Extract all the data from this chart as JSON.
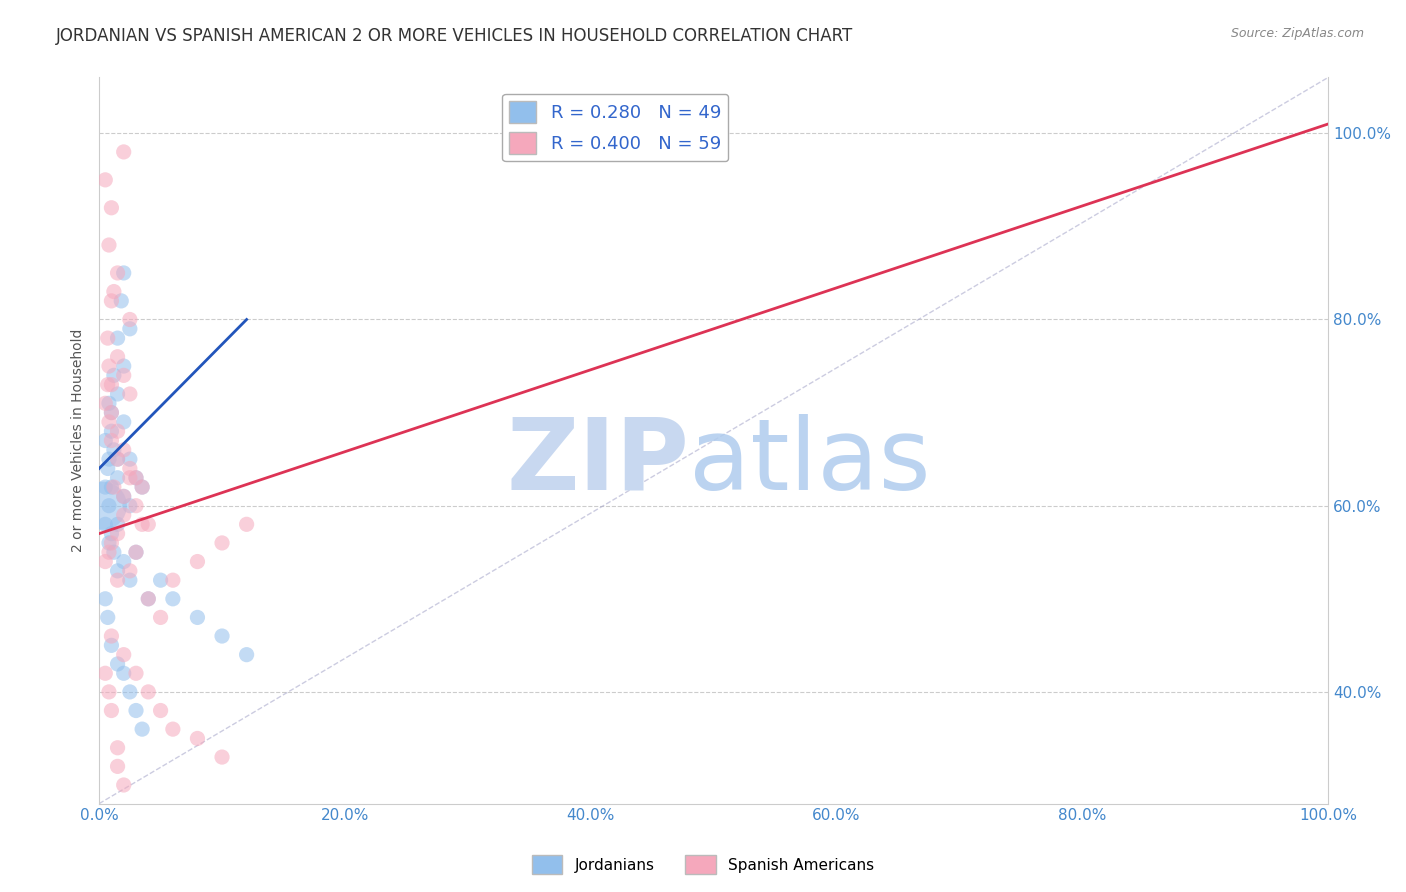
{
  "title": "JORDANIAN VS SPANISH AMERICAN 2 OR MORE VEHICLES IN HOUSEHOLD CORRELATION CHART",
  "source": "Source: ZipAtlas.com",
  "ylabel": "2 or more Vehicles in Household",
  "xlim": [
    0,
    100
  ],
  "ylim": [
    28,
    106
  ],
  "yticks": [
    40,
    60,
    80,
    100
  ],
  "xticks": [
    0,
    20,
    40,
    60,
    80,
    100
  ],
  "ytick_labels": [
    "40.0%",
    "60.0%",
    "80.0%",
    "100.0%"
  ],
  "xtick_labels": [
    "0.0%",
    "20.0%",
    "40.0%",
    "60.0%",
    "80.0%",
    "100.0%"
  ],
  "legend_blue_label": "R = 0.280   N = 49",
  "legend_pink_label": "R = 0.400   N = 59",
  "blue_color": "#92bfec",
  "pink_color": "#f5a8bc",
  "blue_line_color": "#2255bb",
  "pink_line_color": "#dd3355",
  "blue_dots": [
    [
      0.5,
      62
    ],
    [
      0.8,
      65
    ],
    [
      1.0,
      70
    ],
    [
      1.2,
      74
    ],
    [
      1.5,
      78
    ],
    [
      1.8,
      82
    ],
    [
      2.0,
      85
    ],
    [
      2.5,
      79
    ],
    [
      2.0,
      75
    ],
    [
      1.5,
      72
    ],
    [
      1.0,
      68
    ],
    [
      0.8,
      71
    ],
    [
      1.2,
      66
    ],
    [
      2.0,
      69
    ],
    [
      1.5,
      65
    ],
    [
      0.5,
      67
    ],
    [
      0.7,
      64
    ],
    [
      1.0,
      62
    ],
    [
      0.8,
      60
    ],
    [
      1.5,
      63
    ],
    [
      2.0,
      61
    ],
    [
      2.5,
      65
    ],
    [
      3.0,
      63
    ],
    [
      3.5,
      62
    ],
    [
      2.5,
      60
    ],
    [
      1.5,
      58
    ],
    [
      1.0,
      57
    ],
    [
      0.8,
      56
    ],
    [
      0.5,
      58
    ],
    [
      1.2,
      55
    ],
    [
      1.5,
      53
    ],
    [
      2.0,
      54
    ],
    [
      2.5,
      52
    ],
    [
      3.0,
      55
    ],
    [
      4.0,
      50
    ],
    [
      5.0,
      52
    ],
    [
      6.0,
      50
    ],
    [
      8.0,
      48
    ],
    [
      10.0,
      46
    ],
    [
      12.0,
      44
    ],
    [
      0.5,
      50
    ],
    [
      0.7,
      48
    ],
    [
      1.0,
      45
    ],
    [
      1.5,
      43
    ],
    [
      2.0,
      42
    ],
    [
      2.5,
      40
    ],
    [
      3.0,
      38
    ],
    [
      3.5,
      36
    ],
    [
      0.3,
      60
    ]
  ],
  "blue_dot_sizes": [
    120,
    120,
    120,
    120,
    120,
    120,
    120,
    120,
    120,
    120,
    120,
    120,
    120,
    120,
    120,
    120,
    120,
    120,
    120,
    120,
    120,
    120,
    120,
    120,
    120,
    120,
    120,
    120,
    120,
    120,
    120,
    120,
    120,
    120,
    120,
    120,
    120,
    120,
    120,
    120,
    120,
    120,
    120,
    120,
    120,
    120,
    120,
    120,
    1200
  ],
  "pink_dots": [
    [
      0.5,
      95
    ],
    [
      1.0,
      92
    ],
    [
      2.0,
      98
    ],
    [
      0.8,
      88
    ],
    [
      1.5,
      85
    ],
    [
      1.2,
      83
    ],
    [
      2.5,
      80
    ],
    [
      1.0,
      82
    ],
    [
      0.7,
      78
    ],
    [
      1.5,
      76
    ],
    [
      2.0,
      74
    ],
    [
      2.5,
      72
    ],
    [
      1.0,
      70
    ],
    [
      1.5,
      68
    ],
    [
      0.8,
      75
    ],
    [
      2.0,
      66
    ],
    [
      1.5,
      65
    ],
    [
      2.5,
      64
    ],
    [
      3.0,
      63
    ],
    [
      1.0,
      67
    ],
    [
      0.5,
      71
    ],
    [
      0.8,
      69
    ],
    [
      1.2,
      62
    ],
    [
      0.7,
      73
    ],
    [
      2.0,
      61
    ],
    [
      3.0,
      60
    ],
    [
      3.5,
      62
    ],
    [
      4.0,
      58
    ],
    [
      2.0,
      59
    ],
    [
      1.5,
      57
    ],
    [
      1.0,
      56
    ],
    [
      0.8,
      55
    ],
    [
      0.5,
      54
    ],
    [
      1.5,
      52
    ],
    [
      2.5,
      53
    ],
    [
      3.0,
      55
    ],
    [
      4.0,
      50
    ],
    [
      5.0,
      48
    ],
    [
      6.0,
      52
    ],
    [
      8.0,
      54
    ],
    [
      10.0,
      56
    ],
    [
      12.0,
      58
    ],
    [
      1.0,
      46
    ],
    [
      2.0,
      44
    ],
    [
      3.0,
      42
    ],
    [
      4.0,
      40
    ],
    [
      5.0,
      38
    ],
    [
      6.0,
      36
    ],
    [
      8.0,
      35
    ],
    [
      10.0,
      33
    ],
    [
      1.5,
      32
    ],
    [
      2.0,
      30
    ],
    [
      0.5,
      42
    ],
    [
      0.8,
      40
    ],
    [
      1.0,
      38
    ],
    [
      1.5,
      34
    ],
    [
      2.5,
      63
    ],
    [
      1.0,
      73
    ],
    [
      3.5,
      58
    ]
  ],
  "pink_dot_sizes": [
    120,
    120,
    120,
    120,
    120,
    120,
    120,
    120,
    120,
    120,
    120,
    120,
    120,
    120,
    120,
    120,
    120,
    120,
    120,
    120,
    120,
    120,
    120,
    120,
    120,
    120,
    120,
    120,
    120,
    120,
    120,
    120,
    120,
    120,
    120,
    120,
    120,
    120,
    120,
    120,
    120,
    120,
    120,
    120,
    120,
    120,
    120,
    120,
    120,
    120,
    120,
    120,
    120,
    120,
    120,
    120,
    120,
    120,
    120
  ],
  "blue_trend_x": [
    0,
    12
  ],
  "blue_trend_y": [
    64,
    80
  ],
  "pink_trend_x": [
    0,
    100
  ],
  "pink_trend_y": [
    57,
    101
  ],
  "ref_line_x": [
    0,
    100
  ],
  "ref_line_y": [
    28,
    106
  ],
  "grid_color": "#cccccc",
  "bg_color": "#ffffff",
  "legend_fontsize": 13,
  "title_fontsize": 12,
  "axis_fontsize": 11,
  "watermark_zip_color": "#c8d8f0",
  "watermark_atlas_color": "#b0ccee",
  "watermark_fontsize": 72
}
